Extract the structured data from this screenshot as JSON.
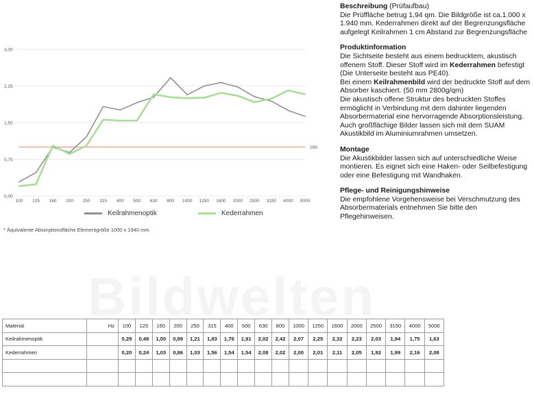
{
  "chart_data": {
    "type": "line",
    "categories": [
      "100",
      "125",
      "160",
      "200",
      "250",
      "315",
      "400",
      "500",
      "630",
      "800",
      "1000",
      "1250",
      "1600",
      "2000",
      "2500",
      "3150",
      "4000",
      "5000"
    ],
    "y_ticks": [
      "0,00",
      "0,75",
      "1,50",
      "2,25",
      "3,00"
    ],
    "ylim": [
      0,
      3
    ],
    "reference": {
      "value": 1.0,
      "label": "100",
      "color": "#d9826a"
    },
    "series": [
      {
        "name": "Keilrahmenoptik",
        "color": "#8f8f8f",
        "values": [
          0.29,
          0.48,
          1.0,
          0.89,
          1.21,
          1.83,
          1.76,
          1.91,
          2.02,
          2.42,
          2.07,
          2.25,
          2.32,
          2.23,
          2.03,
          1.94,
          1.75,
          1.63
        ]
      },
      {
        "name": "Kederrahmen",
        "color": "#a8dc98",
        "values": [
          0.2,
          0.24,
          1.03,
          0.86,
          1.03,
          1.56,
          1.54,
          1.54,
          2.08,
          2.02,
          2.0,
          2.01,
          2.11,
          2.05,
          1.92,
          1.99,
          2.16,
          2.08
        ]
      }
    ],
    "grid": true
  },
  "legend": {
    "series1": "Keilrahmenoptik",
    "series2": "Kederrahmen"
  },
  "footnote": "* Äquivalente Absorptionsfläche Elementgröße 1000 x 1940 mm",
  "watermark": "Bildwelten",
  "description": {
    "heading": "Beschreibung",
    "heading_suffix": " (Prüfaufbau)",
    "body": "Die Prüffläche betrug 1,94 qm. Die Bildgröße ist ca.1.000 x 1.940 mm. Kederrahmen direkt auf der Begrenzungsfläche aufgelegt Keilrahmen 1 cm Abstand zur Begrenzungsfläche"
  },
  "product": {
    "heading": "Produktinformation",
    "p1a": "Die Sichtseite besteht aus einem bedrucktem, akustisch offenem Stoff. Dieser Stoff wird im ",
    "p1b": "Kederrahmen",
    "p1c": " befestigt (Die Unterseite besteht aus PE40).",
    "p2a": "Bei einem ",
    "p2b": "Keilrahmenbild",
    "p2c": " wird der bedruckte Stoff auf dem Absorber kaschiert. (50 mm 2800g/qm)",
    "p3": "Die akustisch offene Struktur des bedruckten Stoffes ermöglicht in Verbindung mit dem dahinter liegenden Absorbermaterial eine hervorragende Absorptionsleistung. Auch großflächige Bilder lassen sich mit dem SUAM Akustikbild im Aluminiumrahmen umsetzen."
  },
  "montage": {
    "heading": "Montage",
    "body": "Die Akustikbilder lassen sich auf unterschiedliche Weise montieren. Es eignet sich eine Haken- oder Seilbefestigung oder eine Befestigung mit Wandhaken."
  },
  "care": {
    "heading": "Pflege- und Reinigungshinweise",
    "body": "Die empfohlene Vorgehensweise bei Verschmutzung des Absorbermaterials entnehmen Sie bitte den Pflegehinweisen."
  },
  "table": {
    "material_label": "Material",
    "hz_label": "Hz",
    "headers": [
      "100",
      "125",
      "160",
      "200",
      "250",
      "315",
      "400",
      "500",
      "630",
      "800",
      "1000",
      "1250",
      "1600",
      "2000",
      "2500",
      "3150",
      "4000",
      "5000"
    ],
    "rows": [
      {
        "label": "Keilrahmenoptik",
        "values": [
          "0,29",
          "0,48",
          "1,00",
          "0,89",
          "1,21",
          "1,83",
          "1,76",
          "1,91",
          "2,02",
          "2,42",
          "2,07",
          "2,25",
          "2,32",
          "2,23",
          "2,03",
          "1,94",
          "1,75",
          "1,63"
        ]
      },
      {
        "label": "Kederrahmen",
        "values": [
          "0,20",
          "0,24",
          "1,03",
          "0,86",
          "1,03",
          "1,56",
          "1,54",
          "1,54",
          "2,08",
          "2,02",
          "2,00",
          "2,01",
          "2,11",
          "2,05",
          "1,92",
          "1,99",
          "2,16",
          "2,08"
        ]
      }
    ]
  }
}
